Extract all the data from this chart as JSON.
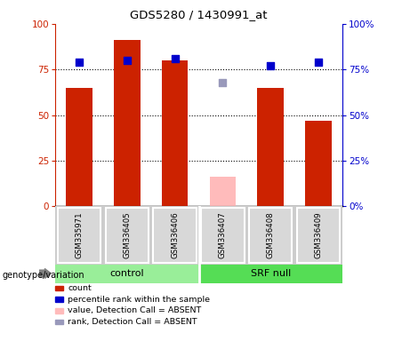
{
  "title": "GDS5280 / 1430991_at",
  "samples": [
    "GSM335971",
    "GSM336405",
    "GSM336406",
    "GSM336407",
    "GSM336408",
    "GSM336409"
  ],
  "count_values": [
    65,
    91,
    80,
    null,
    65,
    47
  ],
  "count_absent_values": [
    null,
    null,
    null,
    16,
    null,
    null
  ],
  "rank_values": [
    79,
    80,
    81,
    null,
    77,
    79
  ],
  "rank_absent_values": [
    null,
    null,
    null,
    68,
    null,
    null
  ],
  "bar_color": "#cc2200",
  "bar_absent_color": "#ffbbbb",
  "dot_color": "#0000cc",
  "dot_absent_color": "#9999bb",
  "ylim": [
    0,
    100
  ],
  "yticks": [
    0,
    25,
    50,
    75,
    100
  ],
  "plot_bg": "#ffffff",
  "tick_area_bg": "#cccccc",
  "control_bg": "#99ee99",
  "srfnull_bg": "#55dd55",
  "legend_items": [
    {
      "color": "#cc2200",
      "label": "count"
    },
    {
      "color": "#0000cc",
      "label": "percentile rank within the sample"
    },
    {
      "color": "#ffbbbb",
      "label": "value, Detection Call = ABSENT"
    },
    {
      "color": "#9999bb",
      "label": "rank, Detection Call = ABSENT"
    }
  ],
  "bar_width": 0.55,
  "dot_size": 30
}
